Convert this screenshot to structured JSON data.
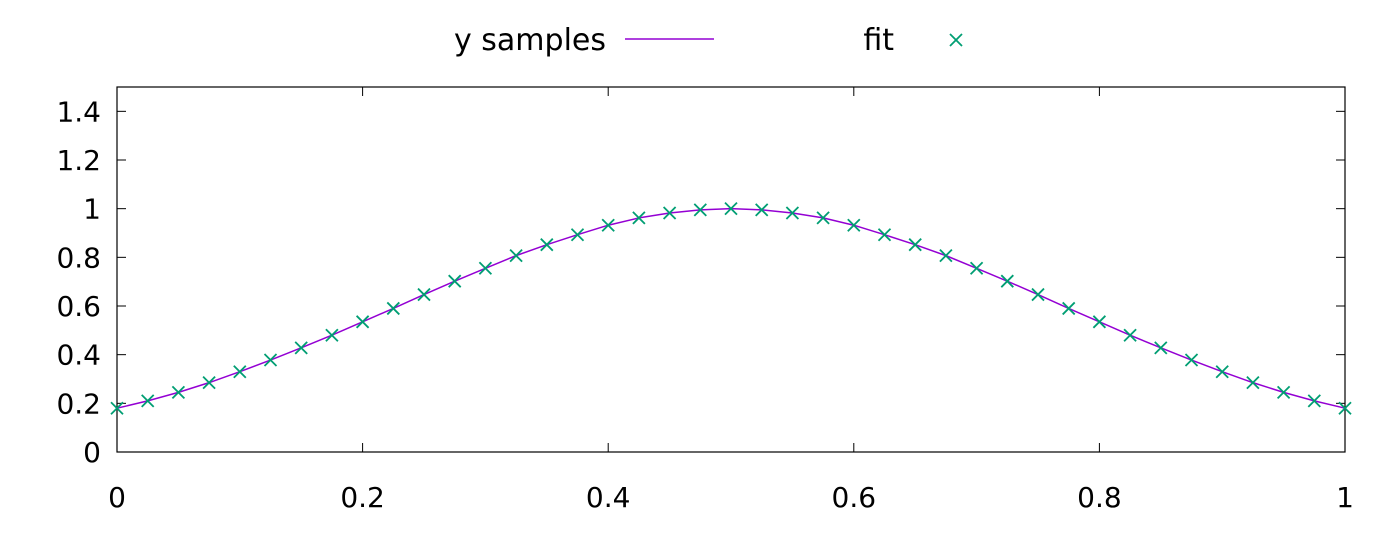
{
  "chart_data": {
    "type": "line",
    "title": "",
    "xlabel": "",
    "ylabel": "",
    "xlim": [
      0,
      1
    ],
    "ylim": [
      0,
      1.5
    ],
    "x_ticks": [
      0,
      0.2,
      0.4,
      0.6,
      0.8,
      1
    ],
    "x_tick_labels": [
      "0",
      "0.2",
      "0.4",
      "0.6",
      "0.8",
      "1"
    ],
    "y_ticks": [
      0,
      0.2,
      0.4,
      0.6,
      0.8,
      1,
      1.2,
      1.4
    ],
    "y_tick_labels": [
      "0",
      "0.2",
      "0.4",
      "0.6",
      "0.8",
      "1",
      "1.2",
      "1.4"
    ],
    "grid": false,
    "legend_position": "top-center",
    "series": [
      {
        "name": "y samples",
        "style": "line",
        "color": "#9400d3",
        "x": [
          0,
          0.025,
          0.05,
          0.075,
          0.1,
          0.125,
          0.15,
          0.175,
          0.2,
          0.225,
          0.25,
          0.275,
          0.3,
          0.325,
          0.35,
          0.375,
          0.4,
          0.425,
          0.45,
          0.475,
          0.5,
          0.525,
          0.55,
          0.575,
          0.6,
          0.625,
          0.65,
          0.675,
          0.7,
          0.725,
          0.75,
          0.775,
          0.8,
          0.825,
          0.85,
          0.875,
          0.9,
          0.925,
          0.95,
          0.975,
          1
        ],
        "y": [
          0.18,
          0.21,
          0.245,
          0.285,
          0.33,
          0.378,
          0.428,
          0.48,
          0.535,
          0.59,
          0.647,
          0.702,
          0.755,
          0.807,
          0.852,
          0.893,
          0.932,
          0.962,
          0.982,
          0.995,
          1.0,
          0.995,
          0.982,
          0.962,
          0.932,
          0.893,
          0.852,
          0.807,
          0.755,
          0.702,
          0.647,
          0.59,
          0.535,
          0.48,
          0.428,
          0.378,
          0.33,
          0.285,
          0.245,
          0.21,
          0.18
        ]
      },
      {
        "name": "fit",
        "style": "points",
        "marker": "x",
        "color": "#009e73",
        "x": [
          0,
          0.025,
          0.05,
          0.075,
          0.1,
          0.125,
          0.15,
          0.175,
          0.2,
          0.225,
          0.25,
          0.275,
          0.3,
          0.325,
          0.35,
          0.375,
          0.4,
          0.425,
          0.45,
          0.475,
          0.5,
          0.525,
          0.55,
          0.575,
          0.6,
          0.625,
          0.65,
          0.675,
          0.7,
          0.725,
          0.75,
          0.775,
          0.8,
          0.825,
          0.85,
          0.875,
          0.9,
          0.925,
          0.95,
          0.975,
          1
        ],
        "y": [
          0.18,
          0.21,
          0.245,
          0.285,
          0.33,
          0.378,
          0.428,
          0.48,
          0.535,
          0.59,
          0.647,
          0.702,
          0.755,
          0.807,
          0.852,
          0.893,
          0.932,
          0.962,
          0.982,
          0.995,
          1.0,
          0.995,
          0.982,
          0.962,
          0.932,
          0.893,
          0.852,
          0.807,
          0.755,
          0.702,
          0.647,
          0.59,
          0.535,
          0.48,
          0.428,
          0.378,
          0.33,
          0.285,
          0.245,
          0.21,
          0.18
        ]
      }
    ]
  }
}
